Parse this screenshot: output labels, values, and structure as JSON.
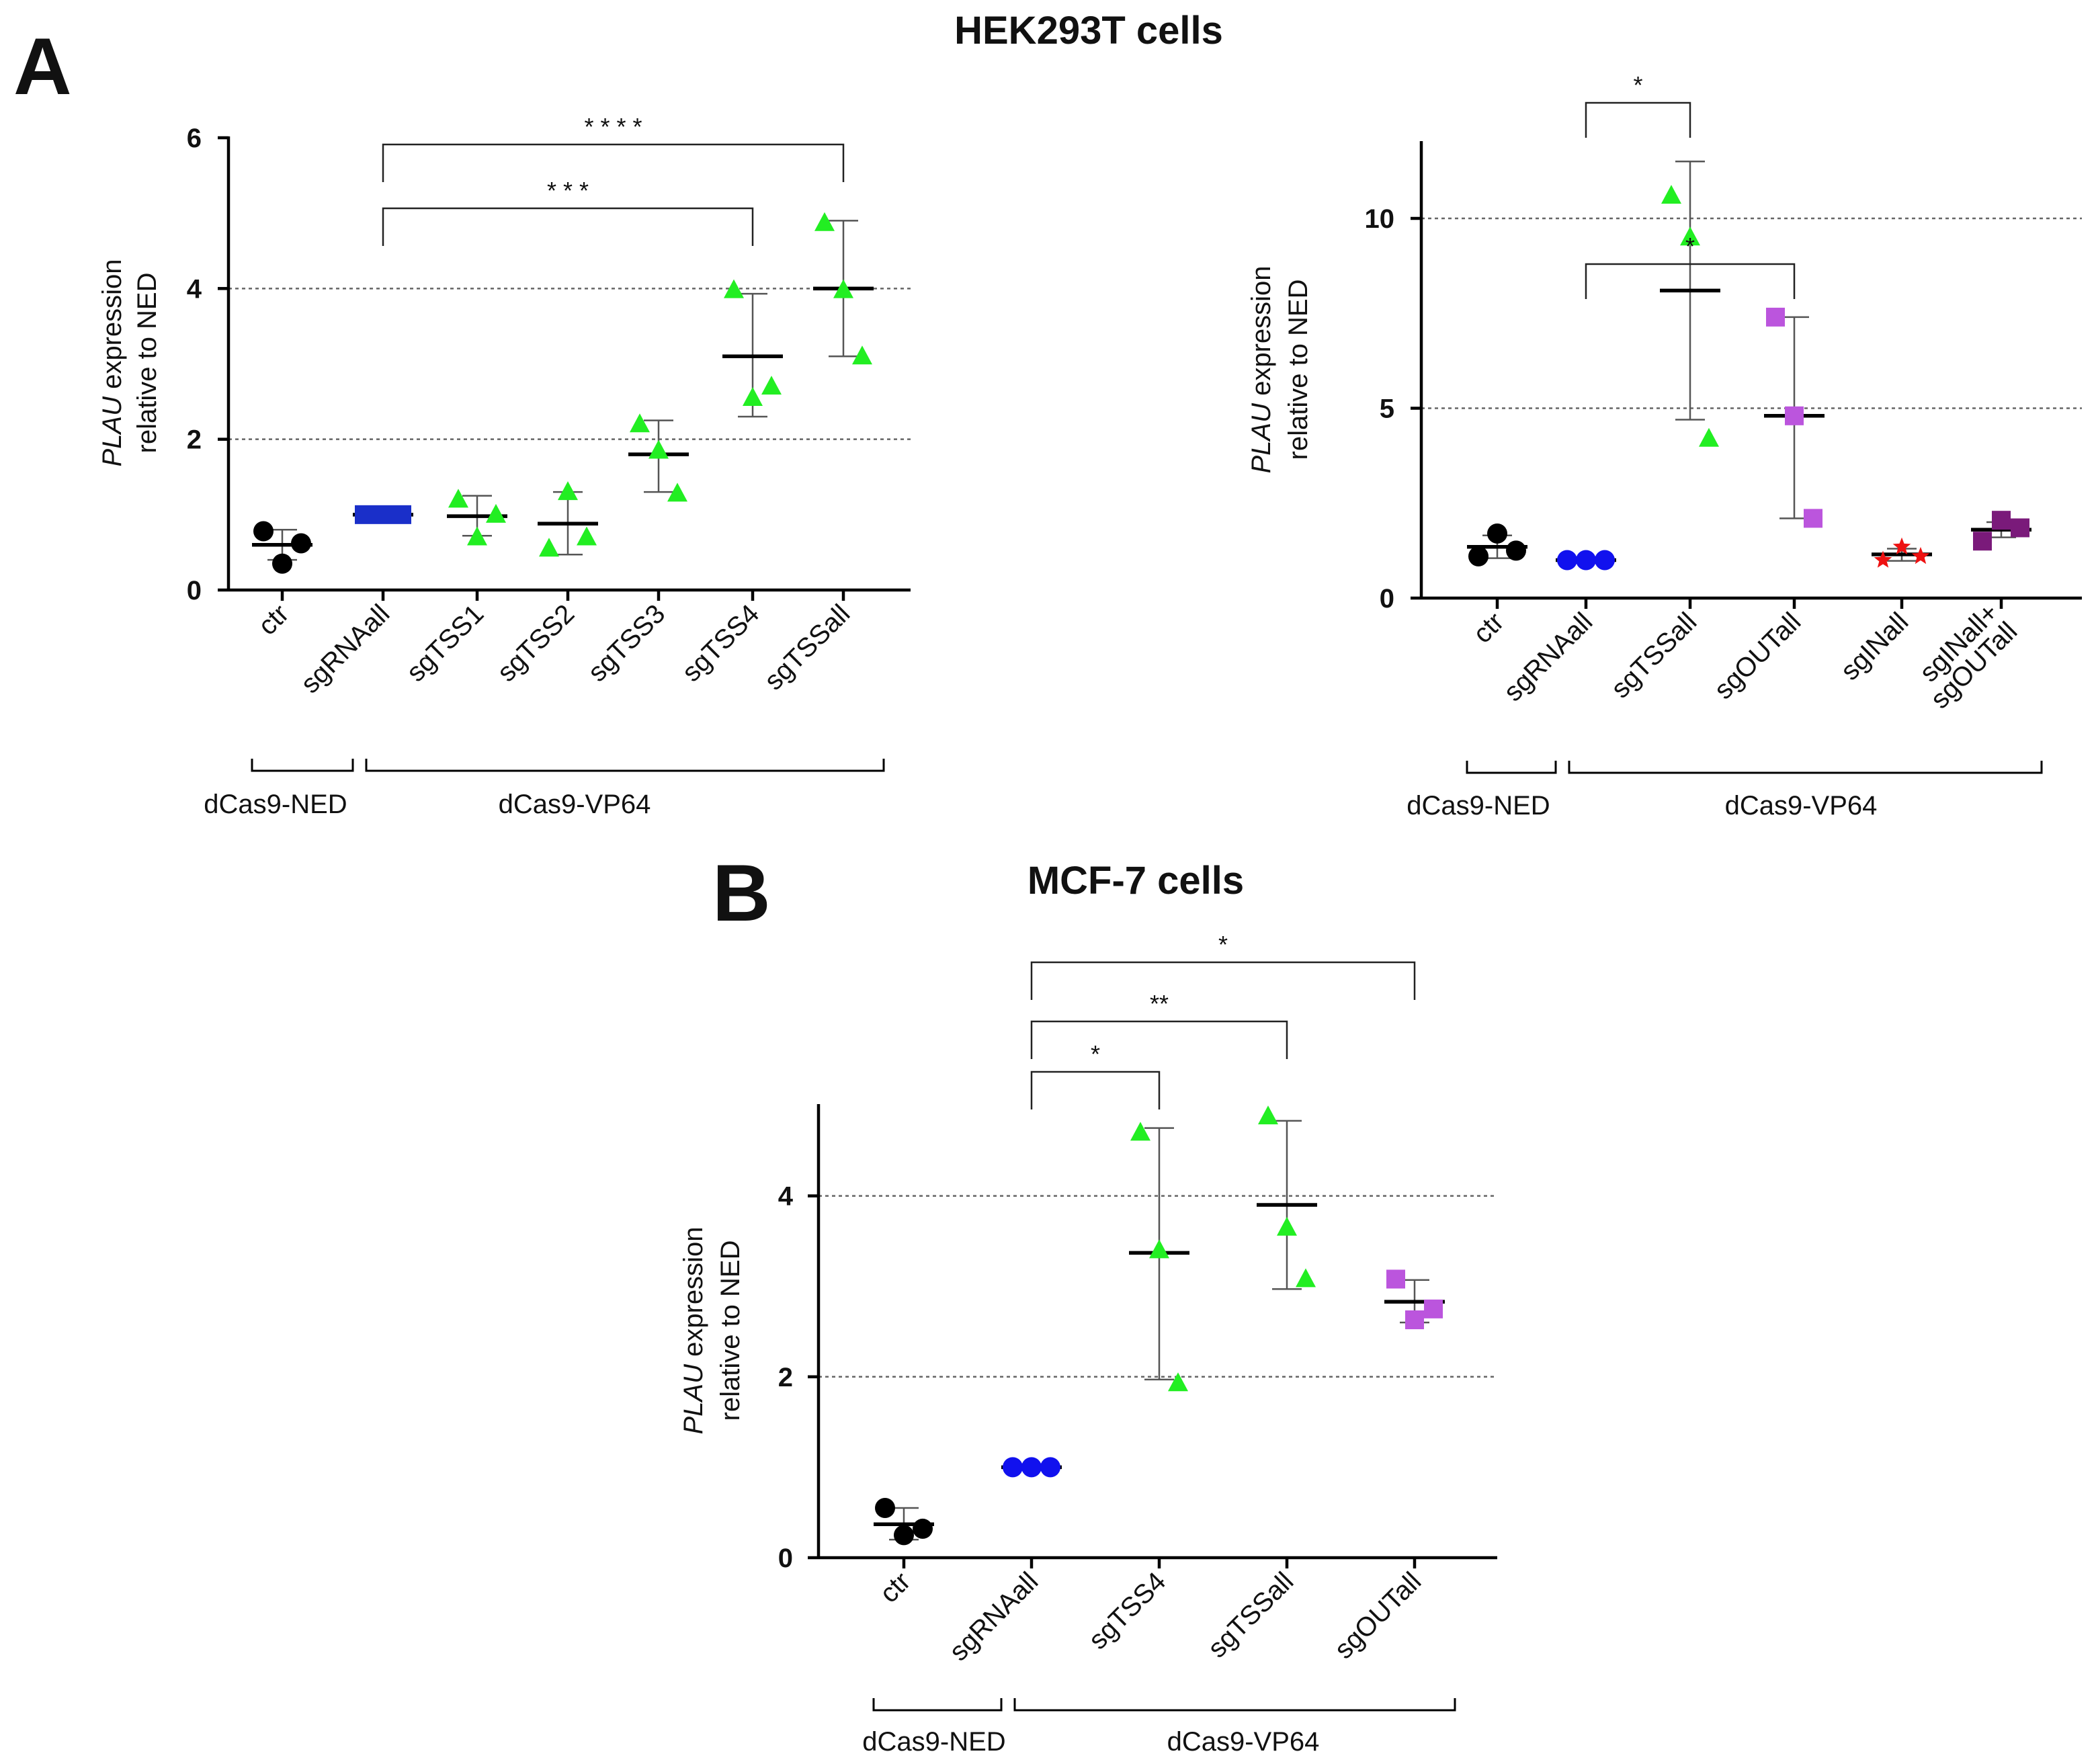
{
  "figure_title": "HEK293T cells",
  "chart_data": [
    {
      "id": "A-left",
      "panel_letter": "A",
      "title": "HEK293T cells",
      "type": "scatter",
      "ylabel_italic": "PLAU",
      "ylabel_rest": " expression",
      "ylabel_line2": "relative to NED",
      "ylim": [
        0,
        6
      ],
      "yticks": [
        "0",
        "2",
        "4",
        "6"
      ],
      "gridlines": [
        2,
        4
      ],
      "categories": [
        "ctr",
        "sgRNAall",
        "sgTSS1",
        "sgTSS2",
        "sgTSS3",
        "sgTSS4",
        "sgTSSall"
      ],
      "series": [
        {
          "name": "ctr",
          "marker": "circle",
          "color": "#000000",
          "values": [
            0.78,
            0.35,
            0.62
          ],
          "mean": 0.6,
          "sd": [
            0.4,
            0.8
          ]
        },
        {
          "name": "sgRNAall",
          "marker": "square",
          "color": "#1a2fc9",
          "values": [
            1.0,
            1.0,
            1.0
          ],
          "mean": 1.0,
          "sd": [
            1.0,
            1.0
          ]
        },
        {
          "name": "sgTSS1",
          "marker": "triangle",
          "color": "#22ee22",
          "values": [
            1.2,
            0.7,
            1.0
          ],
          "mean": 0.98,
          "sd": [
            0.72,
            1.25
          ]
        },
        {
          "name": "sgTSS2",
          "marker": "triangle",
          "color": "#22ee22",
          "values": [
            0.55,
            1.3,
            0.7
          ],
          "mean": 0.88,
          "sd": [
            0.47,
            1.3
          ]
        },
        {
          "name": "sgTSS3",
          "marker": "triangle",
          "color": "#22ee22",
          "values": [
            2.2,
            1.85,
            1.28
          ],
          "mean": 1.8,
          "sd": [
            1.3,
            2.25
          ]
        },
        {
          "name": "sgTSS4",
          "marker": "triangle",
          "color": "#22ee22",
          "values": [
            3.98,
            2.55,
            2.7
          ],
          "mean": 3.1,
          "sd": [
            2.3,
            3.93
          ]
        },
        {
          "name": "sgTSSall",
          "marker": "triangle",
          "color": "#22ee22",
          "values": [
            4.87,
            3.98,
            3.1
          ],
          "mean": 4.0,
          "sd": [
            3.1,
            4.9
          ]
        }
      ],
      "significance": [
        {
          "from": "sgRNAall",
          "to": "sgTSS4",
          "label": "* * *"
        },
        {
          "from": "sgRNAall",
          "to": "sgTSSall",
          "label": "* * * *"
        }
      ],
      "groups": [
        {
          "label": "dCas9-NED",
          "from": "ctr",
          "to": "sgRNAall"
        },
        {
          "label": "dCas9-VP64",
          "from": "sgRNAall",
          "to": "sgTSSall"
        }
      ]
    },
    {
      "id": "A-right",
      "type": "scatter",
      "ylabel_italic": "PLAU",
      "ylabel_rest": " expression",
      "ylabel_line2": "relative to NED",
      "ylim": [
        0,
        12
      ],
      "yticks": [
        "0",
        "5",
        "10"
      ],
      "gridlines": [
        5,
        10
      ],
      "categories": [
        "ctr",
        "sgRNAall",
        "sgTSSall",
        "sgOUTall",
        "sgINall",
        "sgINall+\nsgOUTall"
      ],
      "category_lines": [
        [
          "ctr"
        ],
        [
          "sgRNAall"
        ],
        [
          "sgTSSall"
        ],
        [
          "sgOUTall"
        ],
        [
          "sgINall"
        ],
        [
          "sgINall+",
          "sgOUTall"
        ]
      ],
      "series": [
        {
          "name": "ctr",
          "marker": "circle",
          "color": "#000000",
          "values": [
            1.1,
            1.7,
            1.25
          ],
          "mean": 1.35,
          "sd": [
            1.05,
            1.65
          ]
        },
        {
          "name": "sgRNAall",
          "marker": "circle",
          "color": "#1111ee",
          "values": [
            1.0,
            1.0,
            1.0
          ],
          "mean": 1.0,
          "sd": [
            1.0,
            1.0
          ]
        },
        {
          "name": "sgTSSall",
          "marker": "triangle",
          "color": "#22ee22",
          "values": [
            10.6,
            9.5,
            4.2
          ],
          "mean": 8.1,
          "sd": [
            4.7,
            11.5
          ]
        },
        {
          "name": "sgOUTall",
          "marker": "square",
          "color": "#bb55dd",
          "values": [
            7.4,
            4.8,
            2.1
          ],
          "mean": 4.8,
          "sd": [
            2.1,
            7.4
          ]
        },
        {
          "name": "sgINall",
          "marker": "star",
          "color": "#ee1111",
          "values": [
            1.0,
            1.35,
            1.1
          ],
          "mean": 1.15,
          "sd": [
            0.98,
            1.3
          ]
        },
        {
          "name": "sgINall+sgOUTall",
          "marker": "square",
          "color": "#7a1a7a",
          "values": [
            1.5,
            2.05,
            1.85
          ],
          "mean": 1.8,
          "sd": [
            1.6,
            2.0
          ]
        }
      ],
      "significance": [
        {
          "from": "sgRNAall",
          "to": "sgTSSall",
          "label": "*"
        },
        {
          "from": "sgRNAall",
          "to": "sgOUTall",
          "label": "*"
        }
      ],
      "groups": [
        {
          "label": "dCas9-NED",
          "from": "ctr",
          "to": "sgRNAall"
        },
        {
          "label": "dCas9-VP64",
          "from": "sgRNAall",
          "to": "sgINall+sgOUTall"
        }
      ]
    },
    {
      "id": "B",
      "panel_letter": "B",
      "title": "MCF-7 cells",
      "type": "scatter",
      "ylabel_italic": "PLAU",
      "ylabel_rest": " expression",
      "ylabel_line2": "relative to NED",
      "ylim": [
        0,
        5
      ],
      "yticks": [
        "0",
        "2",
        "4"
      ],
      "gridlines": [
        2,
        4
      ],
      "categories": [
        "ctr",
        "sgRNAall",
        "sgTSS4",
        "sgTSSall",
        "sgOUTall"
      ],
      "series": [
        {
          "name": "ctr",
          "marker": "circle",
          "color": "#000000",
          "values": [
            0.55,
            0.25,
            0.32
          ],
          "mean": 0.37,
          "sd": [
            0.2,
            0.55
          ]
        },
        {
          "name": "sgRNAall",
          "marker": "circle",
          "color": "#1111ee",
          "values": [
            1.0,
            1.0,
            1.0
          ],
          "mean": 1.0,
          "sd": [
            1.0,
            1.0
          ]
        },
        {
          "name": "sgTSS4",
          "marker": "triangle",
          "color": "#22ee22",
          "values": [
            4.7,
            3.4,
            1.93
          ],
          "mean": 3.37,
          "sd": [
            1.97,
            4.75
          ]
        },
        {
          "name": "sgTSSall",
          "marker": "triangle",
          "color": "#22ee22",
          "values": [
            4.88,
            3.65,
            3.08
          ],
          "mean": 3.9,
          "sd": [
            2.97,
            4.83
          ]
        },
        {
          "name": "sgOUTall",
          "marker": "square",
          "color": "#bb55dd",
          "values": [
            3.08,
            2.63,
            2.75
          ],
          "mean": 2.83,
          "sd": [
            2.6,
            3.07
          ]
        }
      ],
      "significance": [
        {
          "from": "sgRNAall",
          "to": "sgTSS4",
          "label": "*"
        },
        {
          "from": "sgRNAall",
          "to": "sgTSSall",
          "label": "**"
        },
        {
          "from": "sgRNAall",
          "to": "sgOUTall",
          "label": "*"
        }
      ],
      "groups": [
        {
          "label": "dCas9-NED",
          "from": "ctr",
          "to": "sgRNAall"
        },
        {
          "label": "dCas9-VP64",
          "from": "sgRNAall",
          "to": "sgOUTall"
        }
      ]
    }
  ]
}
